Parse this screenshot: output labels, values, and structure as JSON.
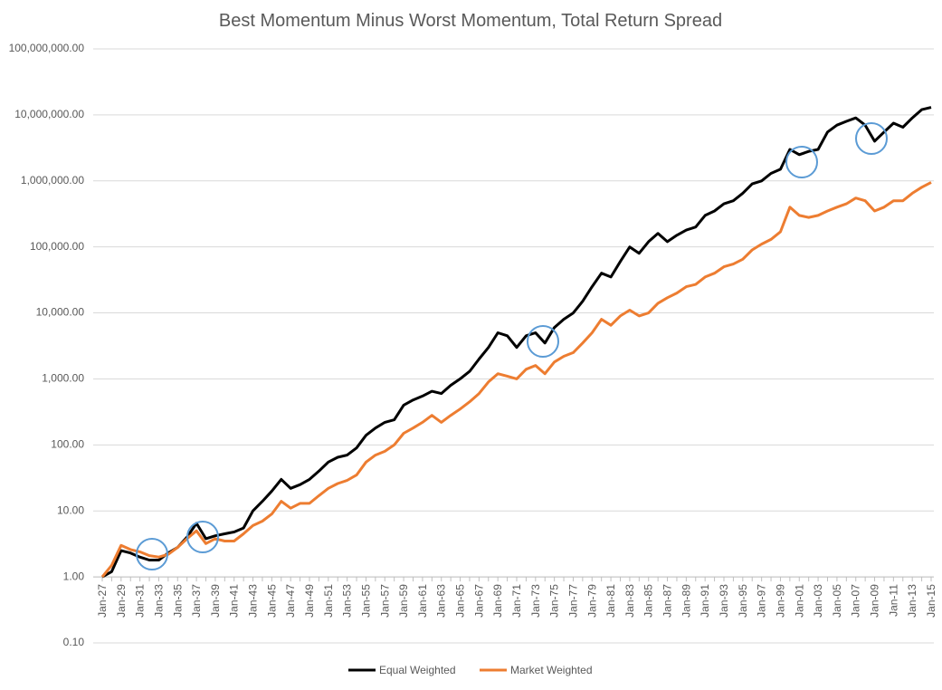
{
  "chart_data": {
    "type": "line",
    "title": "Best Momentum Minus Worst Momentum, Total Return Spread",
    "log_scale": true,
    "grid": true,
    "legend": "bottom",
    "xaxis_at": 1,
    "ylim": [
      0.1,
      100000000
    ],
    "yticks": [
      {
        "value": 0.1,
        "label": "0.10"
      },
      {
        "value": 1,
        "label": "1.00"
      },
      {
        "value": 10,
        "label": "10.00"
      },
      {
        "value": 100,
        "label": "100.00"
      },
      {
        "value": 1000,
        "label": "1,000.00"
      },
      {
        "value": 10000,
        "label": "10,000.00"
      },
      {
        "value": 100000,
        "label": "100,000.00"
      },
      {
        "value": 1000000,
        "label": "1,000,000.00"
      },
      {
        "value": 10000000,
        "label": "10,000,000.00"
      },
      {
        "value": 100000000,
        "label": "100,000,000.00"
      }
    ],
    "categories": [
      "Jan-27",
      null,
      "Jan-29",
      null,
      "Jan-31",
      null,
      "Jan-33",
      null,
      "Jan-35",
      null,
      "Jan-37",
      null,
      "Jan-39",
      null,
      "Jan-41",
      null,
      "Jan-43",
      null,
      "Jan-45",
      null,
      "Jan-47",
      null,
      "Jan-49",
      null,
      "Jan-51",
      null,
      "Jan-53",
      null,
      "Jan-55",
      null,
      "Jan-57",
      null,
      "Jan-59",
      null,
      "Jan-61",
      null,
      "Jan-63",
      null,
      "Jan-65",
      null,
      "Jan-67",
      null,
      "Jan-69",
      null,
      "Jan-71",
      null,
      "Jan-73",
      null,
      "Jan-75",
      null,
      "Jan-77",
      null,
      "Jan-79",
      null,
      "Jan-81",
      null,
      "Jan-83",
      null,
      "Jan-85",
      null,
      "Jan-87",
      null,
      "Jan-89",
      null,
      "Jan-91",
      null,
      "Jan-93",
      null,
      "Jan-95",
      null,
      "Jan-97",
      null,
      "Jan-99",
      null,
      "Jan-01",
      null,
      "Jan-03",
      null,
      "Jan-05",
      null,
      "Jan-07",
      null,
      "Jan-09",
      null,
      "Jan-11",
      null,
      "Jan-13",
      null,
      "Jan-15"
    ],
    "series": [
      {
        "name": "Equal Weighted",
        "color": "#000000",
        "values": [
          1.0,
          1.2,
          2.5,
          2.3,
          2.0,
          1.8,
          1.8,
          2.3,
          2.8,
          4,
          6.5,
          3.8,
          4.2,
          4.5,
          4.8,
          5.5,
          10,
          14,
          20,
          30,
          22,
          25,
          30,
          40,
          55,
          65,
          70,
          90,
          140,
          180,
          220,
          240,
          400,
          480,
          550,
          650,
          600,
          800,
          1000,
          1300,
          2000,
          3000,
          5000,
          4500,
          3000,
          4500,
          5000,
          3500,
          6000,
          8000,
          10000,
          15000,
          25000,
          40000,
          35000,
          60000,
          100000,
          80000,
          120000,
          160000,
          120000,
          150000,
          180000,
          200000,
          300000,
          350000,
          450000,
          500000,
          650000,
          900000,
          1000000,
          1300000,
          1500000,
          3000000,
          2500000,
          2800000,
          3000000,
          5500000,
          7000000,
          8000000,
          9000000,
          7000000,
          4000000,
          5500000,
          7500000,
          6500000,
          9000000,
          12000000,
          13000000
        ]
      },
      {
        "name": "Market Weighted",
        "color": "#ed7d31",
        "values": [
          1.0,
          1.5,
          3.0,
          2.6,
          2.4,
          2.1,
          2.0,
          2.2,
          2.8,
          3.8,
          5.0,
          3.2,
          3.8,
          3.5,
          3.5,
          4.5,
          6,
          7,
          9,
          14,
          11,
          13,
          13,
          17,
          22,
          26,
          29,
          35,
          55,
          70,
          80,
          100,
          150,
          180,
          220,
          280,
          220,
          280,
          350,
          450,
          600,
          900,
          1200,
          1100,
          1000,
          1400,
          1600,
          1200,
          1800,
          2200,
          2500,
          3500,
          5000,
          8000,
          6500,
          9000,
          11000,
          9000,
          10000,
          14000,
          17000,
          20000,
          25000,
          27000,
          35000,
          40000,
          50000,
          55000,
          65000,
          90000,
          110000,
          130000,
          170000,
          400000,
          300000,
          280000,
          300000,
          350000,
          400000,
          450000,
          550000,
          500000,
          350000,
          400000,
          500000,
          500000,
          650000,
          800000,
          950000
        ]
      }
    ]
  }
}
